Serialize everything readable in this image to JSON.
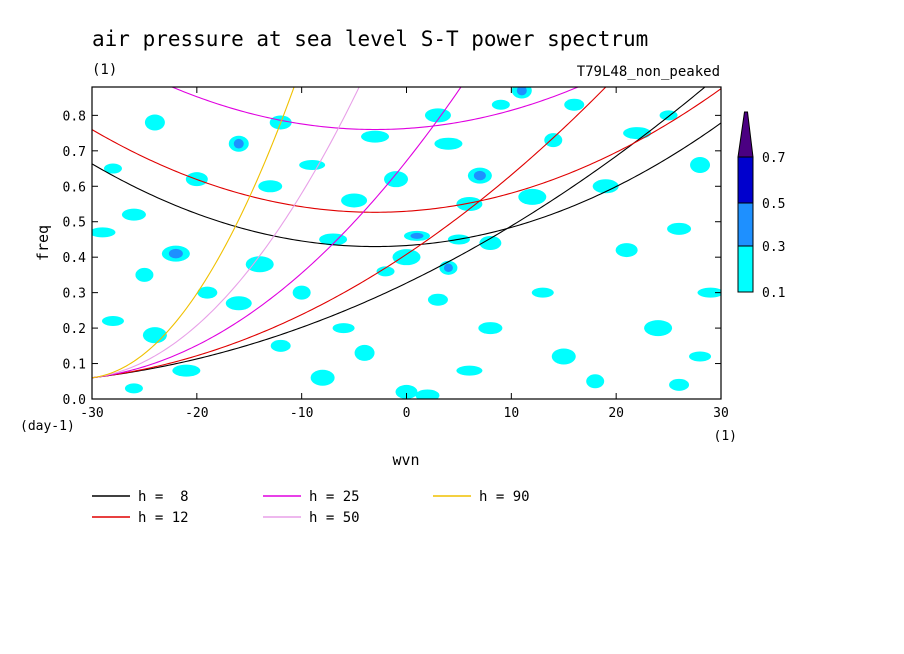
{
  "chart_data": {
    "type": "heatmap",
    "title": "air pressure at sea level S-T power spectrum",
    "subtitle_left": "(1)",
    "subtitle_right": "T79L48_non_peaked",
    "xlabel": "wvn",
    "ylabel": "freq",
    "x_unit": "(1)",
    "y_unit": "(day-1)",
    "xlim": [
      -30,
      30
    ],
    "ylim": [
      0,
      0.88
    ],
    "x_ticks": [
      -30,
      -20,
      -10,
      0,
      10,
      20,
      30
    ],
    "x_tick_labels": [
      "-30",
      "-20",
      "-10",
      "0",
      "10",
      "20",
      "30"
    ],
    "y_ticks": [
      0,
      0.1,
      0.2,
      0.3,
      0.4,
      0.5,
      0.6,
      0.7,
      0.8
    ],
    "y_tick_labels": [
      "0.0",
      "0.1",
      "0.2",
      "0.3",
      "0.4",
      "0.5",
      "0.6",
      "0.7",
      "0.8"
    ],
    "colorbar": {
      "levels": [
        0.1,
        0.3,
        0.5,
        0.7
      ],
      "labels": [
        "0.1",
        "0.3",
        "0.5",
        "0.7"
      ],
      "colors": [
        "#00ffff",
        "#1e90ff",
        "#0000cd",
        "#4b0082"
      ],
      "extend": "max"
    },
    "dispersion_curves": [
      {
        "name": "h =  8",
        "h": 8,
        "color": "#000000"
      },
      {
        "name": "h = 12",
        "h": 12,
        "color": "#e00000"
      },
      {
        "name": "h = 25",
        "h": 25,
        "color": "#e000e0"
      },
      {
        "name": "h = 50",
        "h": 50,
        "color": "#e8a0e8"
      },
      {
        "name": "h = 90",
        "h": 90,
        "color": "#f0c000"
      }
    ],
    "blobs": [
      {
        "wvn": -28,
        "freq": 0.65,
        "level": 0.1
      },
      {
        "wvn": -24,
        "freq": 0.78,
        "level": 0.1
      },
      {
        "wvn": -20,
        "freq": 0.62,
        "level": 0.1
      },
      {
        "wvn": -26,
        "freq": 0.52,
        "level": 0.1
      },
      {
        "wvn": -29,
        "freq": 0.47,
        "level": 0.1
      },
      {
        "wvn": -22,
        "freq": 0.41,
        "level": 0.3
      },
      {
        "wvn": -25,
        "freq": 0.35,
        "level": 0.1
      },
      {
        "wvn": -19,
        "freq": 0.3,
        "level": 0.1
      },
      {
        "wvn": -28,
        "freq": 0.22,
        "level": 0.1
      },
      {
        "wvn": -24,
        "freq": 0.18,
        "level": 0.1
      },
      {
        "wvn": -16,
        "freq": 0.27,
        "level": 0.1
      },
      {
        "wvn": -21,
        "freq": 0.08,
        "level": 0.1
      },
      {
        "wvn": -26,
        "freq": 0.03,
        "level": 0.1
      },
      {
        "wvn": -16,
        "freq": 0.72,
        "level": 0.3
      },
      {
        "wvn": -12,
        "freq": 0.78,
        "level": 0.1
      },
      {
        "wvn": -13,
        "freq": 0.6,
        "level": 0.1
      },
      {
        "wvn": -9,
        "freq": 0.66,
        "level": 0.1
      },
      {
        "wvn": -14,
        "freq": 0.38,
        "level": 0.1
      },
      {
        "wvn": -10,
        "freq": 0.3,
        "level": 0.1
      },
      {
        "wvn": -12,
        "freq": 0.15,
        "level": 0.1
      },
      {
        "wvn": -6,
        "freq": 0.2,
        "level": 0.1
      },
      {
        "wvn": -8,
        "freq": 0.06,
        "level": 0.1
      },
      {
        "wvn": -5,
        "freq": 0.56,
        "level": 0.1
      },
      {
        "wvn": -3,
        "freq": 0.74,
        "level": 0.1
      },
      {
        "wvn": -2,
        "freq": 0.36,
        "level": 0.1
      },
      {
        "wvn": -4,
        "freq": 0.13,
        "level": 0.1
      },
      {
        "wvn": 0,
        "freq": 0.02,
        "level": 0.1
      },
      {
        "wvn": 2,
        "freq": 0.01,
        "level": 0.1
      },
      {
        "wvn": 1,
        "freq": 0.46,
        "level": 0.3
      },
      {
        "wvn": 0,
        "freq": 0.4,
        "level": 0.1
      },
      {
        "wvn": 4,
        "freq": 0.37,
        "level": 0.3
      },
      {
        "wvn": 3,
        "freq": 0.28,
        "level": 0.1
      },
      {
        "wvn": 5,
        "freq": 0.45,
        "level": 0.1
      },
      {
        "wvn": 7,
        "freq": 0.63,
        "level": 0.3
      },
      {
        "wvn": 6,
        "freq": 0.55,
        "level": 0.1
      },
      {
        "wvn": 4,
        "freq": 0.72,
        "level": 0.1
      },
      {
        "wvn": 9,
        "freq": 0.83,
        "level": 0.1
      },
      {
        "wvn": 11,
        "freq": 0.87,
        "level": 0.3
      },
      {
        "wvn": 8,
        "freq": 0.44,
        "level": 0.1
      },
      {
        "wvn": 8,
        "freq": 0.2,
        "level": 0.1
      },
      {
        "wvn": 6,
        "freq": 0.08,
        "level": 0.1
      },
      {
        "wvn": 12,
        "freq": 0.57,
        "level": 0.1
      },
      {
        "wvn": 14,
        "freq": 0.73,
        "level": 0.1
      },
      {
        "wvn": 16,
        "freq": 0.83,
        "level": 0.1
      },
      {
        "wvn": 13,
        "freq": 0.3,
        "level": 0.1
      },
      {
        "wvn": 15,
        "freq": 0.12,
        "level": 0.1
      },
      {
        "wvn": 19,
        "freq": 0.6,
        "level": 0.1
      },
      {
        "wvn": 22,
        "freq": 0.75,
        "level": 0.1
      },
      {
        "wvn": 25,
        "freq": 0.8,
        "level": 0.1
      },
      {
        "wvn": 28,
        "freq": 0.66,
        "level": 0.1
      },
      {
        "wvn": 21,
        "freq": 0.42,
        "level": 0.1
      },
      {
        "wvn": 26,
        "freq": 0.48,
        "level": 0.1
      },
      {
        "wvn": 29,
        "freq": 0.3,
        "level": 0.1
      },
      {
        "wvn": 24,
        "freq": 0.2,
        "level": 0.1
      },
      {
        "wvn": 18,
        "freq": 0.05,
        "level": 0.1
      },
      {
        "wvn": 26,
        "freq": 0.04,
        "level": 0.1
      },
      {
        "wvn": 28,
        "freq": 0.12,
        "level": 0.1
      },
      {
        "wvn": -1,
        "freq": 0.62,
        "level": 0.1
      },
      {
        "wvn": 3,
        "freq": 0.8,
        "level": 0.1
      },
      {
        "wvn": -7,
        "freq": 0.45,
        "level": 0.1
      }
    ]
  }
}
